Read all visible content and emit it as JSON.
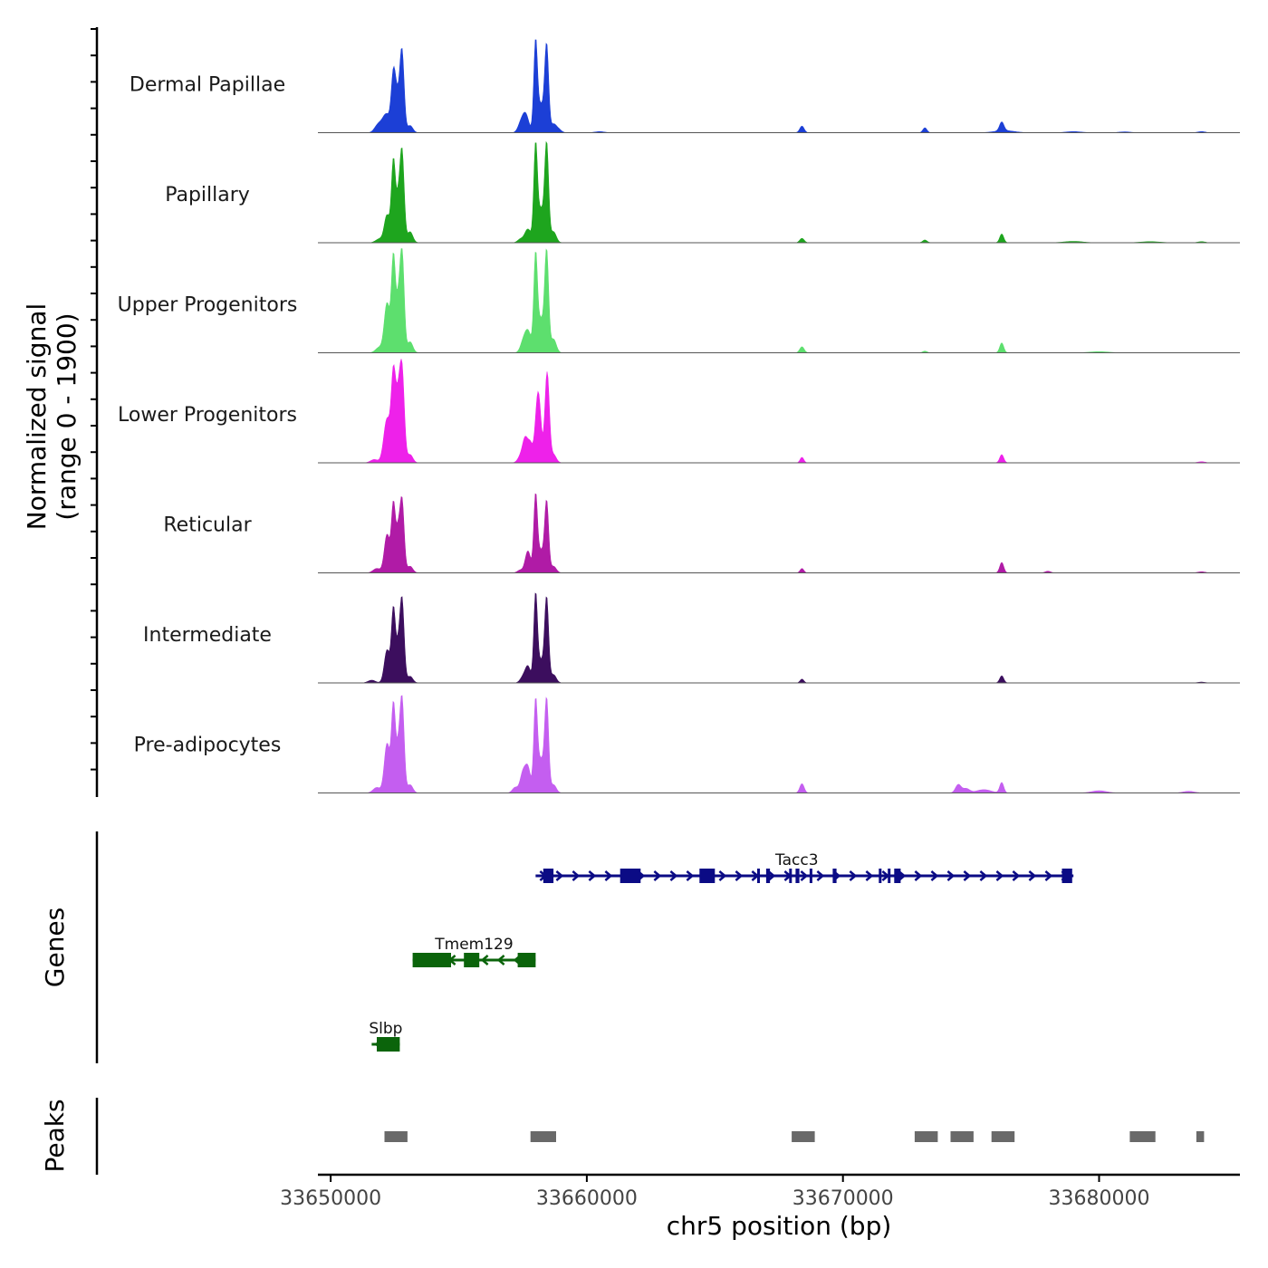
{
  "chart_data": {
    "type": "area",
    "ylabel_line1": "Normalized signal",
    "ylabel_line2": "(range 0 - 1900)",
    "ylim": [
      0,
      1900
    ],
    "xlabel": "chr5 position (bp)",
    "xlim": [
      33649500,
      33685500
    ],
    "xticks": [
      {
        "value": 33650000,
        "label": "33650000"
      },
      {
        "value": 33660000,
        "label": "33660000"
      },
      {
        "value": 33670000,
        "label": "33670000"
      },
      {
        "value": 33680000,
        "label": "33680000"
      }
    ],
    "tracks": [
      {
        "name": "Dermal Papillae",
        "color": "#1c3fd6",
        "peaks": [
          [
            33651800,
            90,
            170
          ],
          [
            33652000,
            150,
            200
          ],
          [
            33652200,
            280,
            180
          ],
          [
            33652450,
            1050,
            120
          ],
          [
            33652780,
            1500,
            120
          ],
          [
            33652600,
            500,
            120
          ],
          [
            33653100,
            130,
            150
          ],
          [
            33657600,
            350,
            180
          ],
          [
            33657400,
            120,
            150
          ],
          [
            33658000,
            1650,
            100
          ],
          [
            33658430,
            1600,
            110
          ],
          [
            33658200,
            500,
            150
          ],
          [
            33658700,
            150,
            150
          ],
          [
            33658900,
            60,
            150
          ],
          [
            33660500,
            20,
            250
          ],
          [
            33668400,
            120,
            120
          ],
          [
            33673200,
            90,
            110
          ],
          [
            33676200,
            160,
            120
          ],
          [
            33676300,
            40,
            500
          ],
          [
            33679000,
            20,
            400
          ],
          [
            33681000,
            15,
            300
          ],
          [
            33684000,
            20,
            200
          ]
        ]
      },
      {
        "name": "Papillary",
        "color": "#1ea51e",
        "peaks": [
          [
            33651900,
            70,
            200
          ],
          [
            33652200,
            500,
            150
          ],
          [
            33652450,
            1500,
            110
          ],
          [
            33652780,
            1700,
            120
          ],
          [
            33652620,
            600,
            100
          ],
          [
            33653100,
            200,
            150
          ],
          [
            33657400,
            60,
            150
          ],
          [
            33657700,
            250,
            180
          ],
          [
            33658000,
            1750,
            100
          ],
          [
            33658430,
            1800,
            110
          ],
          [
            33658200,
            600,
            150
          ],
          [
            33658700,
            200,
            150
          ],
          [
            33668400,
            80,
            120
          ],
          [
            33673200,
            50,
            120
          ],
          [
            33676200,
            160,
            110
          ],
          [
            33679000,
            25,
            500
          ],
          [
            33682000,
            20,
            500
          ],
          [
            33684000,
            20,
            200
          ]
        ]
      },
      {
        "name": "Upper Progenitors",
        "color": "#5ddf6e",
        "peaks": [
          [
            33651900,
            100,
            200
          ],
          [
            33652200,
            900,
            150
          ],
          [
            33652450,
            1750,
            110
          ],
          [
            33652780,
            1900,
            120
          ],
          [
            33652620,
            700,
            100
          ],
          [
            33653100,
            200,
            150
          ],
          [
            33657500,
            150,
            150
          ],
          [
            33657700,
            400,
            180
          ],
          [
            33658000,
            1750,
            100
          ],
          [
            33658430,
            1850,
            110
          ],
          [
            33658200,
            600,
            150
          ],
          [
            33658700,
            250,
            150
          ],
          [
            33668400,
            110,
            120
          ],
          [
            33673200,
            30,
            120
          ],
          [
            33676200,
            180,
            110
          ],
          [
            33680000,
            20,
            500
          ]
        ]
      },
      {
        "name": "Lower Progenitors",
        "color": "#ee21ea",
        "peaks": [
          [
            33651700,
            60,
            200
          ],
          [
            33652200,
            800,
            180
          ],
          [
            33652450,
            1550,
            120
          ],
          [
            33652780,
            1700,
            130
          ],
          [
            33652620,
            900,
            120
          ],
          [
            33653100,
            150,
            150
          ],
          [
            33657400,
            100,
            150
          ],
          [
            33657600,
            450,
            150
          ],
          [
            33657800,
            300,
            120
          ],
          [
            33658100,
            1300,
            150
          ],
          [
            33658450,
            1650,
            120
          ],
          [
            33658700,
            150,
            150
          ],
          [
            33668400,
            100,
            100
          ],
          [
            33676200,
            150,
            110
          ],
          [
            33684000,
            20,
            200
          ]
        ]
      },
      {
        "name": "Reticular",
        "color": "#b01ba6",
        "peaks": [
          [
            33651800,
            80,
            200
          ],
          [
            33652200,
            700,
            150
          ],
          [
            33652450,
            1250,
            110
          ],
          [
            33652780,
            1350,
            120
          ],
          [
            33652620,
            600,
            100
          ],
          [
            33653100,
            120,
            150
          ],
          [
            33657400,
            50,
            150
          ],
          [
            33657700,
            400,
            150
          ],
          [
            33658000,
            1400,
            100
          ],
          [
            33658430,
            1300,
            110
          ],
          [
            33658200,
            400,
            150
          ],
          [
            33658700,
            120,
            150
          ],
          [
            33668400,
            80,
            100
          ],
          [
            33676200,
            190,
            110
          ],
          [
            33678000,
            30,
            150
          ],
          [
            33684000,
            20,
            200
          ]
        ]
      },
      {
        "name": "Intermediate",
        "color": "#3c0e5e",
        "peaks": [
          [
            33651600,
            50,
            200
          ],
          [
            33652200,
            600,
            150
          ],
          [
            33652450,
            1350,
            110
          ],
          [
            33652780,
            1550,
            120
          ],
          [
            33652620,
            500,
            100
          ],
          [
            33653100,
            120,
            150
          ],
          [
            33657500,
            100,
            150
          ],
          [
            33657700,
            300,
            150
          ],
          [
            33658000,
            1600,
            100
          ],
          [
            33658430,
            1550,
            110
          ],
          [
            33658200,
            400,
            150
          ],
          [
            33658700,
            150,
            150
          ],
          [
            33668400,
            70,
            100
          ],
          [
            33676200,
            130,
            110
          ],
          [
            33684000,
            15,
            200
          ]
        ]
      },
      {
        "name": "Pre-adipocytes",
        "color": "#c45ef0",
        "peaks": [
          [
            33651800,
            100,
            200
          ],
          [
            33652200,
            900,
            150
          ],
          [
            33652450,
            1600,
            110
          ],
          [
            33652780,
            1750,
            120
          ],
          [
            33652620,
            600,
            100
          ],
          [
            33653100,
            150,
            150
          ],
          [
            33657200,
            100,
            150
          ],
          [
            33657500,
            350,
            150
          ],
          [
            33657700,
            450,
            150
          ],
          [
            33658000,
            1650,
            100
          ],
          [
            33658430,
            1700,
            110
          ],
          [
            33658200,
            600,
            150
          ],
          [
            33658700,
            150,
            150
          ],
          [
            33668400,
            170,
            120
          ],
          [
            33674500,
            150,
            150
          ],
          [
            33674800,
            80,
            200
          ],
          [
            33675500,
            60,
            400
          ],
          [
            33676200,
            190,
            110
          ],
          [
            33680000,
            40,
            400
          ],
          [
            33683500,
            30,
            300
          ]
        ]
      }
    ],
    "genes_label": "Genes",
    "genes": [
      {
        "name": "Tacc3",
        "strand": "+",
        "color": "#0b0b85",
        "row": 0,
        "start": 33658000,
        "end": 33679000,
        "exons": [
          [
            33658300,
            33658700
          ],
          [
            33661300,
            33662100
          ],
          [
            33664400,
            33665000
          ],
          [
            33666650,
            33666750
          ],
          [
            33667000,
            33667150
          ],
          [
            33667900,
            33668000
          ],
          [
            33668150,
            33668300
          ],
          [
            33668700,
            33668800
          ],
          [
            33669600,
            33669750
          ],
          [
            33671400,
            33671500
          ],
          [
            33671750,
            33671850
          ],
          [
            33672000,
            33672250
          ],
          [
            33678550,
            33678950
          ]
        ]
      },
      {
        "name": "Tmem129",
        "strand": "-",
        "color": "#0b640b",
        "row": 1,
        "start": 33653200,
        "end": 33658000,
        "exons": [
          [
            33653200,
            33654700
          ],
          [
            33655200,
            33655800
          ],
          [
            33657300,
            33658000
          ]
        ]
      },
      {
        "name": "Slbp",
        "strand": "-",
        "color": "#0b640b",
        "row": 2,
        "start": 33651600,
        "end": 33652700,
        "exons": [
          [
            33651800,
            33652700
          ]
        ]
      }
    ],
    "peaks_label": "Peaks",
    "peak_regions": [
      [
        33652100,
        33653000
      ],
      [
        33657800,
        33658800
      ],
      [
        33668000,
        33668900
      ],
      [
        33672800,
        33673700
      ],
      [
        33674200,
        33675100
      ],
      [
        33675800,
        33676700
      ],
      [
        33681200,
        33682200
      ],
      [
        33683800,
        33684100
      ]
    ]
  }
}
